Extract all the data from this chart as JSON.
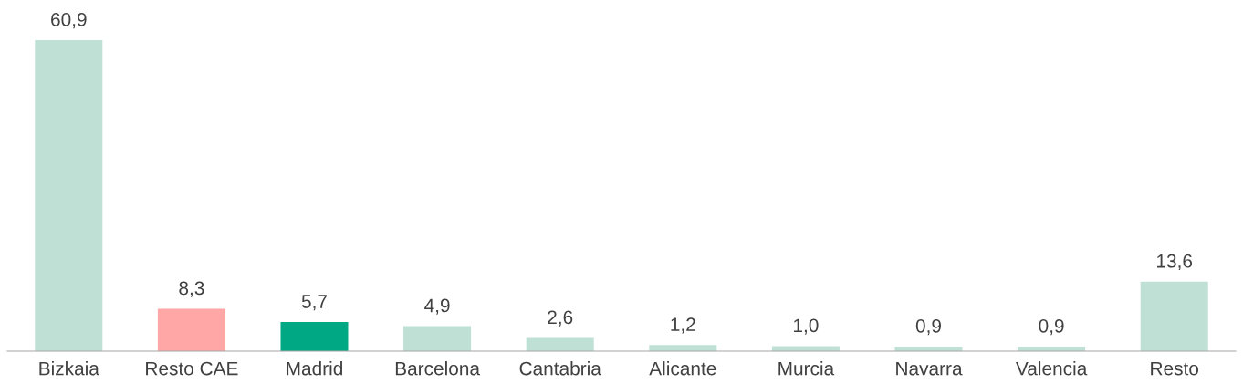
{
  "chart_data": {
    "type": "bar",
    "categories": [
      "Bizkaia",
      "Resto CAE",
      "Madrid",
      "Barcelona",
      "Cantabria",
      "Alicante",
      "Murcia",
      "Navarra",
      "Valencia",
      "Resto"
    ],
    "values": [
      60.9,
      8.3,
      5.7,
      4.9,
      2.6,
      1.2,
      1.0,
      0.9,
      0.9,
      13.6
    ],
    "value_labels": [
      "60,9",
      "8,3",
      "5,7",
      "4,9",
      "2,6",
      "1,2",
      "1,0",
      "0,9",
      "0,9",
      "13,6"
    ],
    "colors": [
      "#bfe1d5",
      "#ffa6a6",
      "#00a884",
      "#bfe1d5",
      "#bfe1d5",
      "#bfe1d5",
      "#bfe1d5",
      "#bfe1d5",
      "#bfe1d5",
      "#bfe1d5"
    ],
    "tick_labels": "x"
  }
}
